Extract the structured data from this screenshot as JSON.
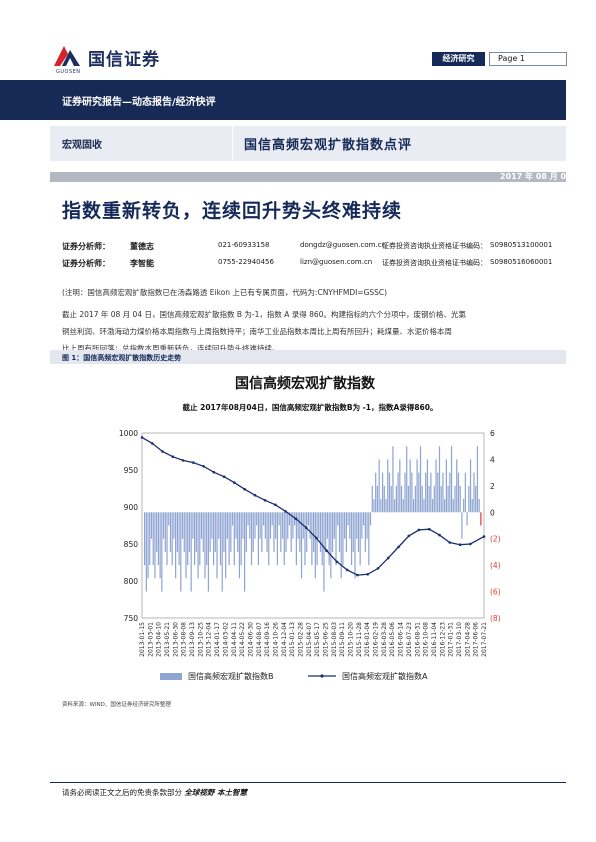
{
  "header": {
    "logo_text": "国信证券",
    "logo_en": "GUOSEN",
    "category_tag": "经济研究",
    "page_label": "Page 1",
    "report_type": "证券研究报告—动态报告/经济快评",
    "sector": "宏观固收",
    "report_title": "国信高频宏观扩散指数点评",
    "date": "2017 年 08 月 07 日",
    "headline": "指数重新转负，连续回升势头终难持续"
  },
  "analysts": [
    {
      "role": "证券分析师：",
      "name": "董德志",
      "phone": "021-60933158",
      "email": "dongdz@guosen.com.cn",
      "cert_label": "证券投资咨询执业资格证书编码：",
      "cert_no": "S0980513100001"
    },
    {
      "role": "证券分析师：",
      "name": "李智能",
      "phone": "0755-22940456",
      "email": "lizn@guosen.com.cn",
      "cert_label": "证券投资咨询执业资格证书编码：",
      "cert_no": "S0980516060001"
    }
  ],
  "note": "(注明：国信高频宏观扩散指数已在汤森路透 Eikon 上已有专属页面，代码为:CNYHFMDI=GSSC)",
  "body_lines": [
    "截止 2017 年 08 月 04 日，国信高频宏观扩散指数 B 为-1，指数 A 录得 860。构建指标的六个分项中，废钢价格、光氯",
    "铜丝利润、环渤海动力煤价格本周指数与上周指数持平；南华工业品指数本周比上周有所回升；耗煤量、水泥价格本周",
    "比上周有所回落；总指数本周重新转负，连续回升势头终难持续。"
  ],
  "figure": {
    "caption": "图 1：国信高频宏观扩散指数历史走势"
  },
  "chart_data": {
    "type": "bar",
    "title": "国信高频宏观扩散指数",
    "subtitle": "截止 2017年08月04日，国信高频宏观扩散指数B为 -1，指数A录得860。",
    "left_axis": {
      "ylim": [
        750,
        1000
      ],
      "ticks": [
        750,
        800,
        850,
        900,
        950,
        1000
      ]
    },
    "right_axis": {
      "ylim": [
        -8,
        6
      ],
      "ticks": [
        "(8)",
        "(6)",
        "(4)",
        "(2)",
        "0",
        "2",
        "4",
        "6"
      ]
    },
    "x_tick_labels": [
      "2013-01-15",
      "2013-03-01",
      "2013-04-10",
      "2013-05-21",
      "2013-06-30",
      "2013-08-08",
      "2013-09-13",
      "2013-10-25",
      "2013-12-04",
      "2014-01-17",
      "2014-03-02",
      "2014-04-11",
      "2014-05-22",
      "2014-06-30",
      "2014-08-07",
      "2014-09-16",
      "2014-10-26",
      "2014-12-04",
      "2015-01-13",
      "2015-02-28",
      "2015-04-07",
      "2015-05-17",
      "2015-06-25",
      "2015-08-03",
      "2015-09-11",
      "2015-10-20",
      "2015-11-28",
      "2016-01-04",
      "2016-02-19",
      "2016-03-28",
      "2016-05-06",
      "2016-06-14",
      "2016-07-23",
      "2016-08-31",
      "2016-10-08",
      "2016-11-04",
      "2016-12-23",
      "2017-01-31",
      "2017-03-10",
      "2017-04-28",
      "2017-06-06",
      "2017-07-21"
    ],
    "series": [
      {
        "name": "国信高频宏观扩散指数B",
        "axis": "right",
        "type": "bar",
        "color": "#8ea4d2",
        "values": [
          -4,
          -6,
          -5,
          -4,
          -2,
          -4,
          -5,
          -3,
          -4,
          -5,
          -6,
          -2,
          -3,
          -4,
          -1,
          -3,
          -4,
          -2,
          -5,
          -3,
          -4,
          -6,
          -2,
          -3,
          -5,
          -4,
          -3,
          -6,
          -2,
          -4,
          -3,
          -5,
          -4,
          -2,
          -3,
          -5,
          -4,
          -6,
          -3,
          -2,
          -4,
          -3,
          -5,
          -2,
          -4,
          -6,
          -3,
          -5,
          -2,
          -4,
          -3,
          -1,
          -4,
          -2,
          -3,
          -5,
          -4,
          -2,
          -6,
          -3,
          -1,
          -2,
          -4,
          -3,
          -2,
          -1,
          -4,
          -2,
          -3,
          -1,
          -2,
          -3,
          -4,
          -2,
          -1,
          -3,
          -2,
          -4,
          -1,
          -3,
          -2,
          -4,
          -3,
          -2,
          -1,
          -3,
          -2,
          -1,
          -4,
          -2,
          -3,
          -5,
          -2,
          -4,
          -3,
          -1,
          -2,
          -4,
          -3,
          -5,
          -4,
          -2,
          -3,
          -4,
          -6,
          -3,
          -2,
          -4,
          -5,
          -3,
          -2,
          -4,
          -1,
          -3,
          -5,
          -4,
          -2,
          -3,
          -1,
          -2,
          -4,
          -3,
          -5,
          -2,
          -3,
          -4,
          -2,
          -1,
          -3,
          -2,
          -4,
          -1,
          2,
          1,
          3,
          2,
          4,
          1,
          3,
          2,
          1,
          4,
          3,
          2,
          5,
          1,
          2,
          3,
          4,
          2,
          1,
          3,
          5,
          2,
          4,
          3,
          1,
          2,
          4,
          3,
          5,
          2,
          1,
          3,
          4,
          2,
          3,
          1,
          2,
          4,
          3,
          5,
          2,
          3,
          1,
          4,
          2,
          3,
          5,
          1,
          2,
          4,
          3,
          2,
          -2,
          1,
          3,
          -1,
          2,
          4,
          1,
          3,
          2,
          5,
          1,
          -1
        ]
      },
      {
        "name": "国信高频宏观扩散指数A",
        "axis": "left",
        "type": "line",
        "color": "#1c2f6e",
        "x_pos": [
          0,
          0.03,
          0.06,
          0.09,
          0.12,
          0.15,
          0.18,
          0.21,
          0.24,
          0.27,
          0.3,
          0.33,
          0.36,
          0.39,
          0.42,
          0.45,
          0.48,
          0.51,
          0.54,
          0.57,
          0.6,
          0.63,
          0.66,
          0.69,
          0.72,
          0.75,
          0.78,
          0.81,
          0.84,
          0.87,
          0.9,
          0.93,
          0.96,
          1.0
        ],
        "values": [
          994,
          986,
          975,
          968,
          963,
          960,
          955,
          947,
          941,
          933,
          924,
          916,
          909,
          903,
          894,
          884,
          872,
          858,
          841,
          826,
          815,
          808,
          809,
          817,
          831,
          846,
          861,
          869,
          870,
          862,
          852,
          849,
          850,
          860
        ]
      }
    ],
    "legend": {
      "position": "bottom"
    }
  },
  "source": "资料来源：WIND、国信证券经济研究所整理",
  "footer": {
    "disclaimer": "请务必阅读正文之后的免责条款部分",
    "slogan": "全球视野 本土智慧"
  },
  "colors": {
    "navy": "#172a55",
    "bar": "#8ea4d2",
    "line": "#1c2f6e",
    "red": "#e23a3a"
  }
}
